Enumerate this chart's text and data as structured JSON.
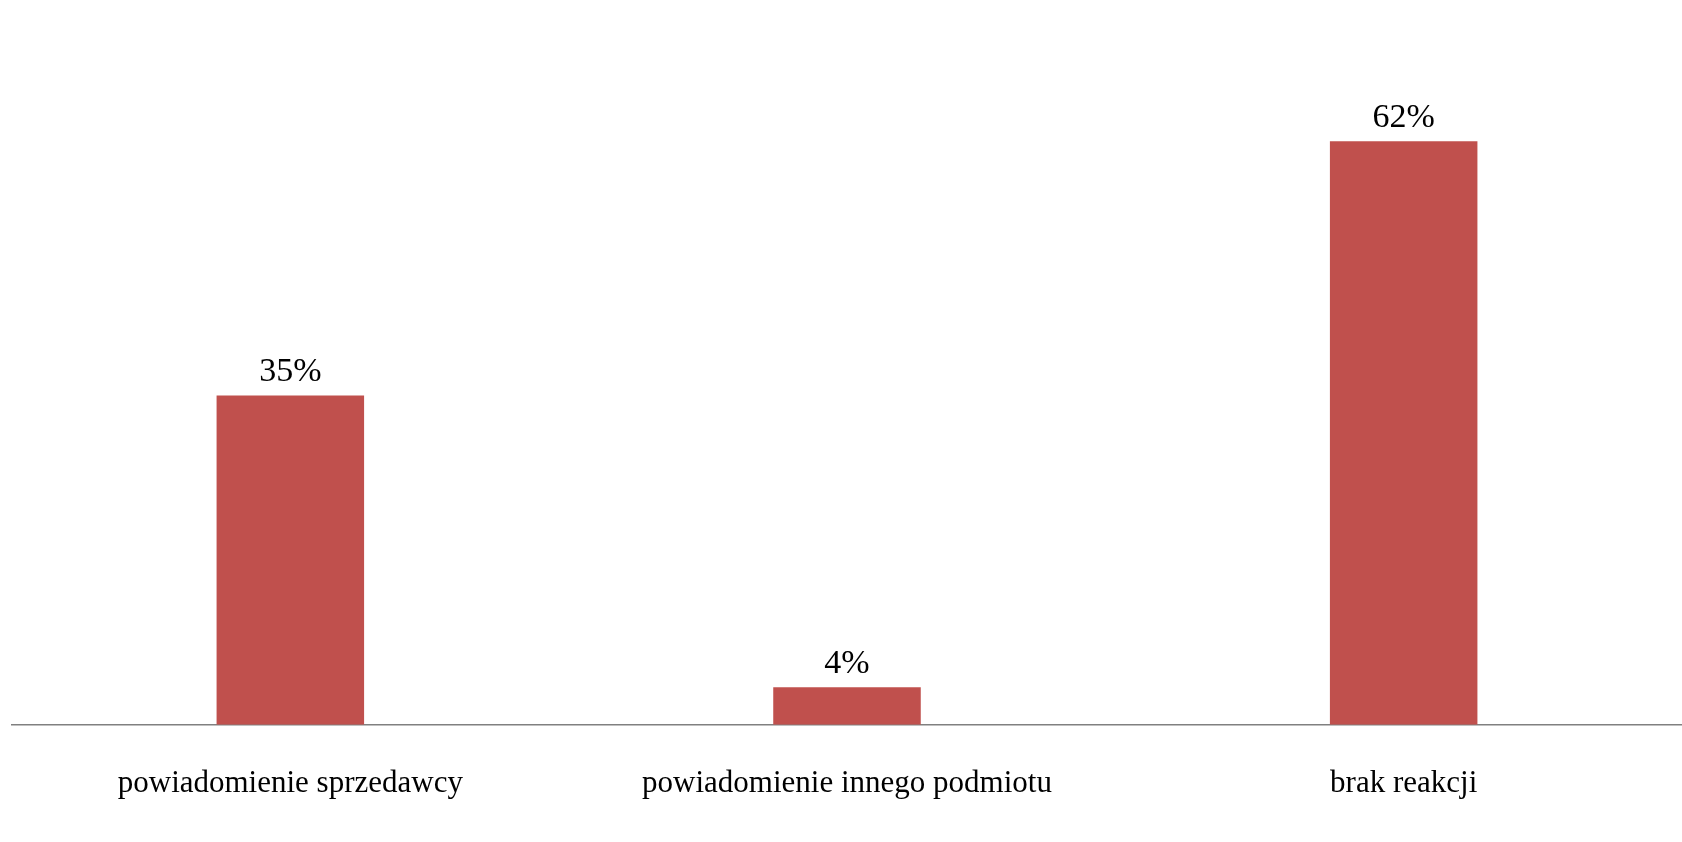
{
  "chart_data": {
    "type": "bar",
    "categories": [
      "powiadomienie sprzedawcy",
      "powiadomienie innego podmiotu",
      "brak reakcji"
    ],
    "values": [
      35,
      4,
      62
    ],
    "value_labels": [
      "35%",
      "4%",
      "62%"
    ],
    "color": "#c0504d",
    "grid": false,
    "legend": false
  }
}
